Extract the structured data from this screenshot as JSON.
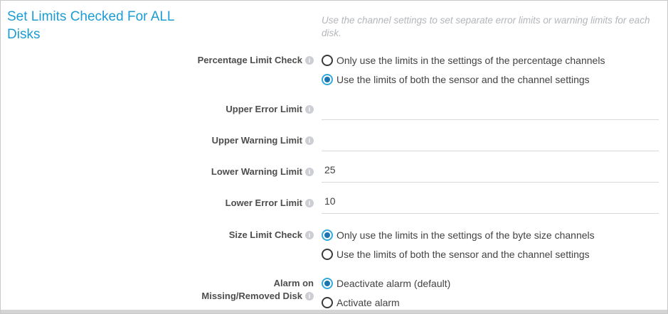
{
  "section": {
    "title": "Set Limits Checked For ALL Disks",
    "hint": "Use the channel settings to set separate error limits or warning limits for each disk."
  },
  "icons": {
    "info": "i"
  },
  "fields": {
    "percentage_limit_check": {
      "label": "Percentage Limit Check",
      "options": [
        {
          "label": "Only use the limits in the settings of the percentage channels",
          "selected": false
        },
        {
          "label": "Use the limits of both the sensor and the channel settings",
          "selected": true
        }
      ]
    },
    "upper_error_limit": {
      "label": "Upper Error Limit",
      "value": ""
    },
    "upper_warning_limit": {
      "label": "Upper Warning Limit",
      "value": ""
    },
    "lower_warning_limit": {
      "label": "Lower Warning Limit",
      "value": "25"
    },
    "lower_error_limit": {
      "label": "Lower Error Limit",
      "value": "10"
    },
    "size_limit_check": {
      "label": "Size Limit Check",
      "options": [
        {
          "label": "Only use the limits in the settings of the byte size channels",
          "selected": true
        },
        {
          "label": "Use the limits of both the sensor and the channel settings",
          "selected": false
        }
      ]
    },
    "alarm_on_missing_removed_disk": {
      "label": "Alarm on Missing/Removed Disk",
      "options": [
        {
          "label": "Deactivate alarm (default)",
          "selected": true
        },
        {
          "label": "Activate alarm",
          "selected": false
        }
      ]
    }
  },
  "colors": {
    "title_blue": "#1d9cd3",
    "radio_selected_ring": "#34a8dd",
    "radio_selected_dot": "#1a74b0",
    "label_gray": "#4d4d4d",
    "hint_gray": "#b3b6ba",
    "underline_gray": "#d9d9d9",
    "panel_border": "#c8c8c8",
    "bottom_bar": "#d4d4d4"
  }
}
